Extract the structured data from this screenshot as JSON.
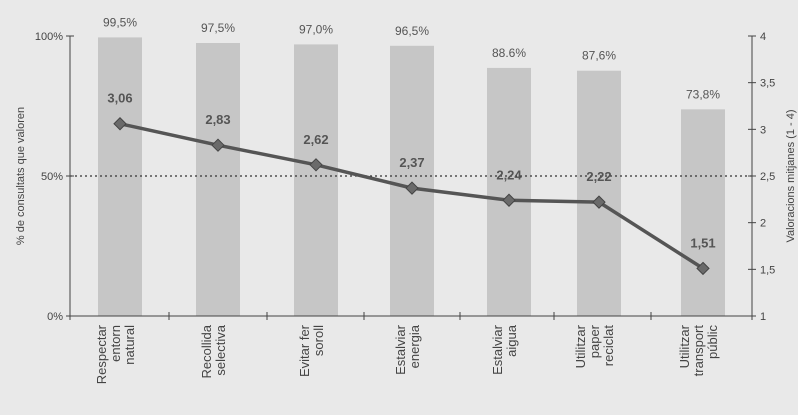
{
  "chart_data": {
    "type": "bar",
    "categories": [
      [
        "Respectar",
        "entorn",
        "natural"
      ],
      [
        "Recollida",
        "selectiva"
      ],
      [
        "Evitar fer",
        "soroll"
      ],
      [
        "Estalviar",
        "energia"
      ],
      [
        "Estalviar",
        "aigua"
      ],
      [
        "Utilitzar",
        "paper",
        "reciclat"
      ],
      [
        "Utilitzar",
        "transport",
        "públic"
      ]
    ],
    "series": [
      {
        "type": "bar",
        "axis": "left",
        "values": [
          99.5,
          97.5,
          97.0,
          96.5,
          88.6,
          87.6,
          73.8
        ],
        "labels": [
          "99,5%",
          "97,5%",
          "97,0%",
          "96,5%",
          "88.6%",
          "87,6%",
          "73,8%"
        ],
        "color": "#c6c6c6"
      },
      {
        "type": "line",
        "axis": "right",
        "values": [
          3.06,
          2.83,
          2.62,
          2.37,
          2.24,
          2.22,
          1.51
        ],
        "labels": [
          "3,06",
          "2,83",
          "2,62",
          "2,37",
          "2,24",
          "2,22",
          "1,51"
        ],
        "color": "#555555"
      }
    ],
    "ylabel": "% de consultats que valoren",
    "y2label": "Valoracions mitjanes (1 - 4)",
    "ylim": [
      0,
      100
    ],
    "y2lim": [
      1,
      4
    ],
    "yticks": [
      "0%",
      "50%",
      "100%"
    ],
    "y2ticks": [
      "1",
      "1,5",
      "2",
      "2,5",
      "3",
      "3,5",
      "4"
    ],
    "reference_line": {
      "axis": "left",
      "value": 50,
      "style": "dotted"
    },
    "grid": false,
    "legend": "none"
  }
}
